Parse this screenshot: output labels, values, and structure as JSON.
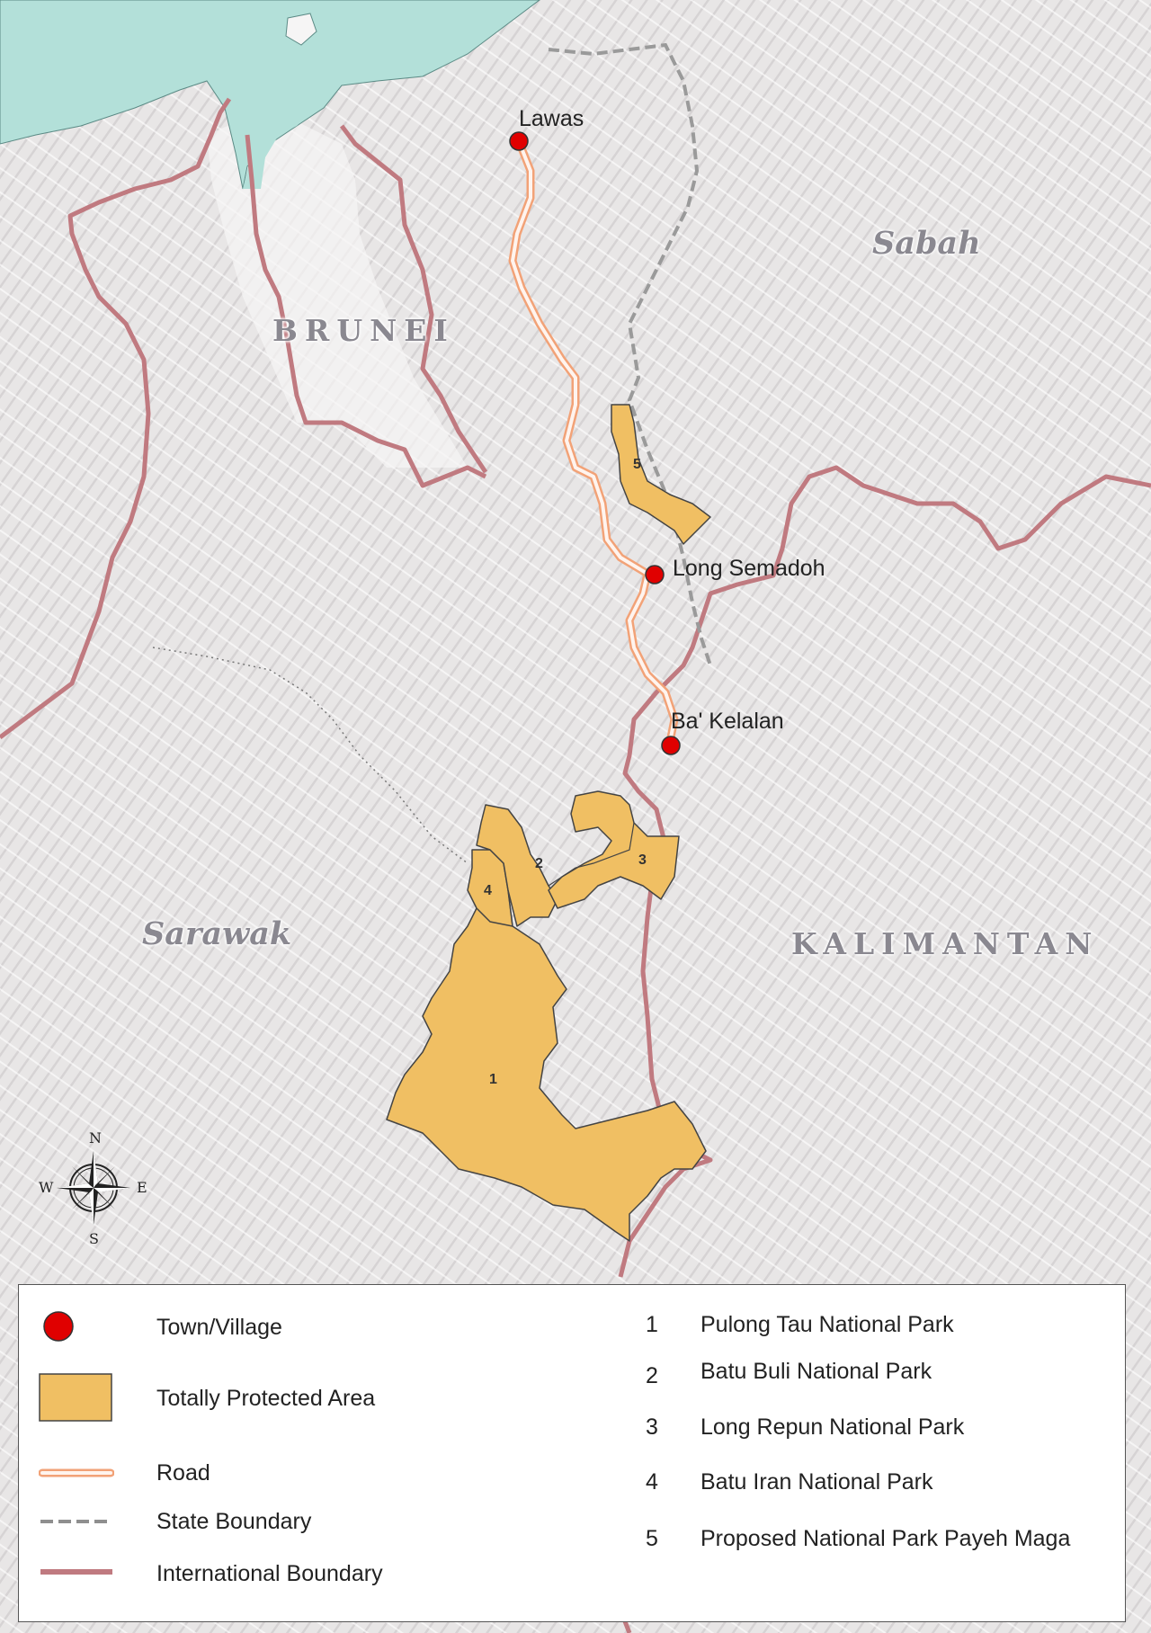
{
  "map": {
    "towns": [
      {
        "id": "lawas",
        "label": "Lawas"
      },
      {
        "id": "long-semadoh",
        "label": "Long Semadoh"
      },
      {
        "id": "ba-kelalan",
        "label": "Ba' Kelalan"
      }
    ],
    "regions": {
      "brunei": "BRUNEI",
      "sabah": "Sabah",
      "sarawak": "Sarawak",
      "kalimantan": "KALIMANTAN"
    },
    "park_numbers": [
      "1",
      "2",
      "3",
      "4",
      "5"
    ],
    "compass": {
      "n": "N",
      "e": "E",
      "s": "S",
      "w": "W"
    }
  },
  "legend": {
    "symbols": [
      {
        "label": "Town/Village",
        "icon": "town-marker-icon"
      },
      {
        "label": "Totally Protected Area",
        "icon": "protected-area-swatch-icon"
      },
      {
        "label": "Road",
        "icon": "road-line-icon"
      },
      {
        "label": "State Boundary",
        "icon": "state-boundary-line-icon"
      },
      {
        "label": "International Boundary",
        "icon": "international-boundary-line-icon"
      }
    ],
    "parks": [
      {
        "num": "1",
        "name": "Pulong Tau National Park"
      },
      {
        "num": "2",
        "name": "Batu Buli National Park"
      },
      {
        "num": "3",
        "name": "Long Repun National Park"
      },
      {
        "num": "4",
        "name": "Batu Iran National Park"
      },
      {
        "num": "5",
        "name": "Proposed National Park Payeh Maga"
      }
    ]
  },
  "colors": {
    "sea": "#b3e0d9",
    "terrain": "#e8e6e6",
    "protected_area": "#f0bf63",
    "road": "#f2a277",
    "town": "#e00000",
    "international_boundary": "#c07a80",
    "state_boundary": "#9a9a9a"
  }
}
